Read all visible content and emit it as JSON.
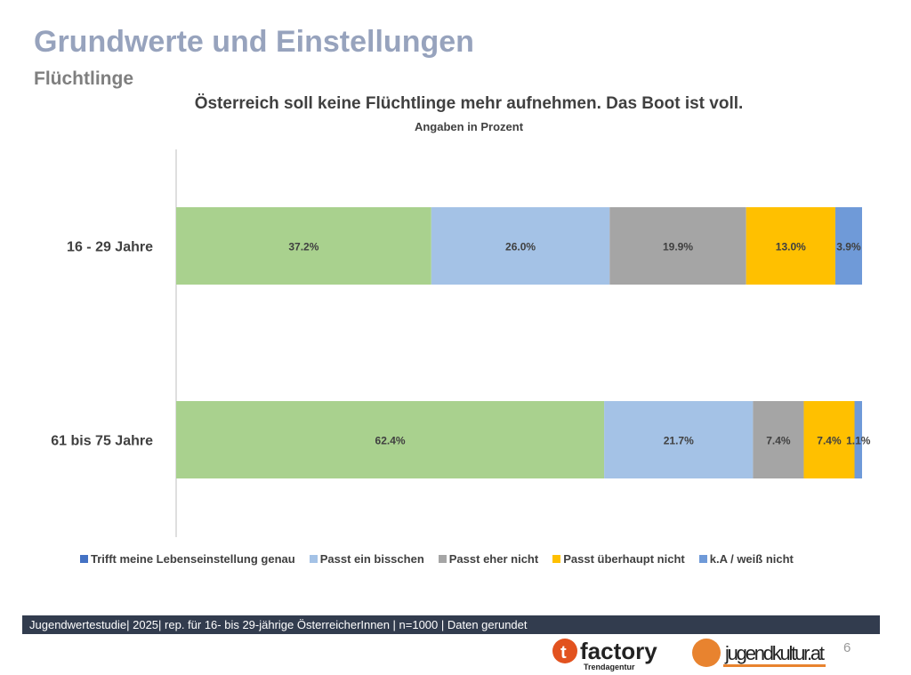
{
  "header": {
    "title": "Grundwerte und Einstellungen",
    "subtitle": "Flüchtlinge"
  },
  "chart_data": {
    "type": "bar",
    "orientation": "horizontal",
    "stacked": true,
    "title": "Österreich soll keine Flüchtlinge mehr aufnehmen. Das Boot ist voll.",
    "subtitle": "Angaben in Prozent",
    "categories": [
      "16 - 29 Jahre",
      "61 bis 75 Jahre"
    ],
    "series": [
      {
        "name": "Trifft meine Lebenseinstellung genau",
        "color": "#a9d18e",
        "legend_color": "#4472c4",
        "values": [
          37.2,
          62.4
        ]
      },
      {
        "name": "Passt ein bisschen",
        "color": "#a4c2e6",
        "values": [
          26.0,
          21.7
        ]
      },
      {
        "name": "Passt eher nicht",
        "color": "#a5a5a5",
        "values": [
          19.9,
          7.4
        ]
      },
      {
        "name": "Passt überhaupt nicht",
        "color": "#ffc000",
        "values": [
          13.0,
          7.4
        ]
      },
      {
        "name": "k.A / weiß nicht",
        "color": "#6f9ad8",
        "values": [
          3.9,
          1.1
        ]
      }
    ],
    "legend_position": "bottom",
    "xlim": [
      0,
      100
    ]
  },
  "footer": "Jugendwertestudie| 2025| rep. für 16- bis 29-jährige ÖsterreicherInnen | n=1000 | Daten gerundet",
  "logos": {
    "left": "factory",
    "left_sub": "Trendagentur",
    "right": "jugendkultur.at"
  },
  "page_number": "6"
}
